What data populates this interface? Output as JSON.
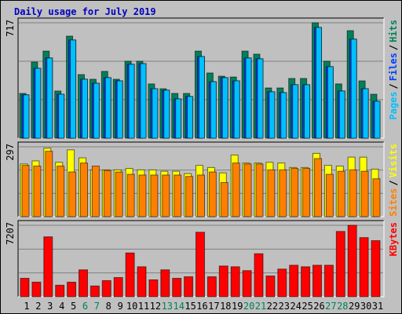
{
  "title": "Daily usage for July 2019",
  "chart_data": [
    {
      "type": "bar",
      "ylim": [
        0,
        717
      ],
      "yticks": [
        717
      ],
      "legend_separator": "/",
      "series": [
        {
          "name": "Hits",
          "color": "#00805c",
          "values": [
            278,
            473,
            541,
            293,
            634,
            395,
            366,
            415,
            366,
            478,
            478,
            337,
            307,
            278,
            278,
            541,
            405,
            385,
            380,
            541,
            522,
            312,
            312,
            371,
            371,
            717,
            478,
            337,
            668,
            356,
            273
          ]
        },
        {
          "name": "Files",
          "color": "#0040ff",
          "values": [
            269,
            434,
            498,
            273,
            610,
            366,
            341,
            376,
            356,
            459,
            463,
            307,
            298,
            244,
            259,
            507,
            351,
            376,
            356,
            498,
            493,
            288,
            283,
            332,
            332,
            688,
            444,
            293,
            615,
            307,
            229
          ]
        },
        {
          "name": "Pages",
          "color": "#00c0ff",
          "values": [
            269,
            434,
            498,
            273,
            610,
            366,
            341,
            376,
            356,
            459,
            463,
            307,
            298,
            244,
            259,
            507,
            351,
            376,
            356,
            498,
            493,
            288,
            283,
            332,
            332,
            688,
            444,
            293,
            615,
            307,
            229
          ]
        }
      ]
    },
    {
      "type": "bar",
      "ylim": [
        0,
        297
      ],
      "yticks": [
        297
      ],
      "legend_separator": "/",
      "series": [
        {
          "name": "Visits",
          "color": "#ffff00",
          "values": [
            224,
            237,
            291,
            231,
            284,
            250,
            199,
            199,
            199,
            205,
            199,
            199,
            193,
            193,
            183,
            218,
            209,
            186,
            262,
            228,
            228,
            231,
            228,
            209,
            209,
            269,
            218,
            215,
            253,
            253,
            202
          ]
        },
        {
          "name": "Sites",
          "color": "#ff8000",
          "values": [
            218,
            215,
            278,
            215,
            190,
            228,
            215,
            196,
            190,
            180,
            177,
            177,
            177,
            177,
            171,
            177,
            190,
            145,
            228,
            224,
            224,
            199,
            199,
            205,
            205,
            247,
            180,
            193,
            199,
            193,
            161
          ]
        }
      ]
    },
    {
      "type": "bar",
      "ylim": [
        0,
        7207
      ],
      "yticks": [
        7207
      ],
      "series": [
        {
          "name": "KBytes",
          "color": "#ff0000",
          "values": [
            1860,
            1473,
            6045,
            1163,
            1473,
            2713,
            1085,
            1628,
            1938,
            4418,
            3023,
            1705,
            2713,
            1860,
            2015,
            6510,
            2015,
            3100,
            3023,
            2635,
            4340,
            2093,
            2790,
            3178,
            3023,
            3178,
            3178,
            6588,
            7207,
            5968,
            5658
          ]
        }
      ],
      "categories": [
        "1",
        "2",
        "3",
        "4",
        "5",
        "6",
        "7",
        "8",
        "9",
        "10",
        "11",
        "12",
        "13",
        "14",
        "15",
        "16",
        "17",
        "18",
        "19",
        "20",
        "21",
        "22",
        "23",
        "24",
        "25",
        "26",
        "27",
        "28",
        "29",
        "30",
        "31"
      ],
      "category_colors": [
        "#000",
        "#000",
        "#000",
        "#000",
        "#000",
        "#00805c",
        "#00805c",
        "#000",
        "#000",
        "#000",
        "#000",
        "#000",
        "#00805c",
        "#00805c",
        "#000",
        "#000",
        "#000",
        "#000",
        "#000",
        "#00805c",
        "#00805c",
        "#000",
        "#000",
        "#000",
        "#000",
        "#000",
        "#00805c",
        "#00805c",
        "#000",
        "#000",
        "#000"
      ]
    }
  ]
}
